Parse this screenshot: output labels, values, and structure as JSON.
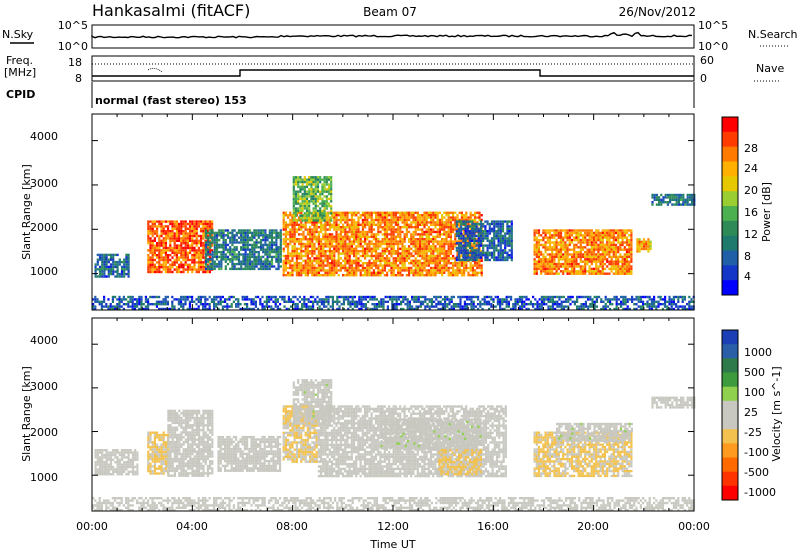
{
  "header": {
    "station": "Hankasalmi (fitACF)",
    "beam": "Beam 07",
    "date": "26/Nov/2012"
  },
  "noise_panel": {
    "left_label": "N.Sky",
    "right_label": "N.Search",
    "left_ticks": [
      "10^5",
      "10^0"
    ],
    "right_ticks": [
      "10^5",
      "10^0"
    ]
  },
  "freq_panel": {
    "left_label_line1": "Freq.",
    "left_label_line2": "[MHz]",
    "right_label": "Nave",
    "left_ticks": [
      "18",
      "8"
    ],
    "right_ticks": [
      "60",
      "0"
    ]
  },
  "cpid": {
    "label": "CPID",
    "value": "normal (fast stereo) 153"
  },
  "power_panel": {
    "ylabel": "Slant Range [km]",
    "yticks": [
      "4000",
      "3000",
      "2000",
      "1000"
    ],
    "colorbar_label": "Power [dB]",
    "colorbar_ticks": [
      "28",
      "24",
      "20",
      "16",
      "12",
      "8",
      "4"
    ],
    "colorbar_colors": [
      "#ff0000",
      "#ff3b00",
      "#ff7a00",
      "#ffb000",
      "#e6c800",
      "#9acd32",
      "#4caf50",
      "#2e8b57",
      "#1e7a6c",
      "#1f5fa8",
      "#1537c8",
      "#0000ff"
    ]
  },
  "velocity_panel": {
    "ylabel": "Slant Range [km]",
    "yticks": [
      "4000",
      "3000",
      "2000",
      "1000"
    ],
    "colorbar_label": "Velocity [m s^-1]",
    "colorbar_ticks": [
      "1000",
      "500",
      "100",
      "25",
      "-25",
      "-100",
      "-500",
      "-1000"
    ],
    "colorbar_colors": [
      "#1c3fb5",
      "#2a5fa8",
      "#2f7a4a",
      "#3d9a3d",
      "#8fd14f",
      "#c8c8c0",
      "#c8c8c0",
      "#f2c14e",
      "#ff9a20",
      "#ff6a00",
      "#ff3300",
      "#ff0000"
    ]
  },
  "xaxis": {
    "label": "Time UT",
    "ticks": [
      "00:00",
      "04:00",
      "08:00",
      "12:00",
      "16:00",
      "20:00",
      "00:00"
    ]
  },
  "chart_data": [
    {
      "type": "heatmap",
      "title": "Power",
      "xlabel": "Time UT",
      "ylabel": "Slant Range [km]",
      "x_range_hours": [
        0,
        24
      ],
      "ylim": [
        180,
        4600
      ],
      "color_label": "Power [dB]",
      "color_range": [
        0,
        30
      ],
      "blobs": [
        {
          "t0": 0.1,
          "t1": 1.5,
          "r0": 950,
          "r1": 1450,
          "dB": 6
        },
        {
          "t0": 2.2,
          "t1": 4.8,
          "r0": 1050,
          "r1": 2200,
          "dB": 26
        },
        {
          "t0": 4.5,
          "t1": 7.5,
          "r0": 1100,
          "r1": 2000,
          "dB": 8
        },
        {
          "t0": 7.6,
          "t1": 15.5,
          "r0": 950,
          "r1": 2400,
          "dB": 24
        },
        {
          "t0": 8.0,
          "t1": 9.5,
          "r0": 2200,
          "r1": 3200,
          "dB": 14
        },
        {
          "t0": 14.5,
          "t1": 16.7,
          "r0": 1300,
          "r1": 2200,
          "dB": 6
        },
        {
          "t0": 17.6,
          "t1": 21.5,
          "r0": 1000,
          "r1": 2000,
          "dB": 24
        },
        {
          "t0": 21.7,
          "t1": 22.3,
          "r0": 1500,
          "r1": 1800,
          "dB": 22
        },
        {
          "t0": 22.3,
          "t1": 24.0,
          "r0": 2550,
          "r1": 2800,
          "dB": 8
        },
        {
          "t0": 0.0,
          "t1": 24.0,
          "r0": 180,
          "r1": 500,
          "dB": 5
        }
      ]
    },
    {
      "type": "heatmap",
      "title": "Velocity",
      "xlabel": "Time UT",
      "ylabel": "Slant Range [km]",
      "x_range_hours": [
        0,
        24
      ],
      "ylim": [
        180,
        4600
      ],
      "color_label": "Velocity [m s^-1]",
      "color_range": [
        -1000,
        1000
      ],
      "blobs": [
        {
          "t0": 0.1,
          "t1": 1.8,
          "r0": 1000,
          "r1": 1600,
          "v": 0
        },
        {
          "t0": 2.2,
          "t1": 3.0,
          "r0": 1050,
          "r1": 2000,
          "v": -200
        },
        {
          "t0": 3.0,
          "t1": 4.8,
          "r0": 1000,
          "r1": 2500,
          "v": 0
        },
        {
          "t0": 5.0,
          "t1": 7.5,
          "r0": 1100,
          "r1": 1900,
          "v": 0
        },
        {
          "t0": 7.6,
          "t1": 9.0,
          "r0": 1300,
          "r1": 2600,
          "v": -200
        },
        {
          "t0": 8.0,
          "t1": 9.5,
          "r0": 2200,
          "r1": 3200,
          "v": 100
        },
        {
          "t0": 9.0,
          "t1": 16.5,
          "r0": 1000,
          "r1": 2600,
          "v": 0
        },
        {
          "t0": 11.5,
          "t1": 15.5,
          "r0": 1600,
          "r1": 2300,
          "v": 100
        },
        {
          "t0": 13.8,
          "t1": 15.5,
          "r0": 1000,
          "r1": 1600,
          "v": -200
        },
        {
          "t0": 17.6,
          "t1": 21.5,
          "r0": 1000,
          "r1": 2000,
          "v": -200
        },
        {
          "t0": 18.5,
          "t1": 21.5,
          "r0": 1800,
          "r1": 2200,
          "v": 100
        },
        {
          "t0": 22.3,
          "t1": 24.0,
          "r0": 2550,
          "r1": 2800,
          "v": 0
        },
        {
          "t0": 0.0,
          "t1": 24.0,
          "r0": 180,
          "r1": 500,
          "v": -30
        }
      ]
    }
  ]
}
